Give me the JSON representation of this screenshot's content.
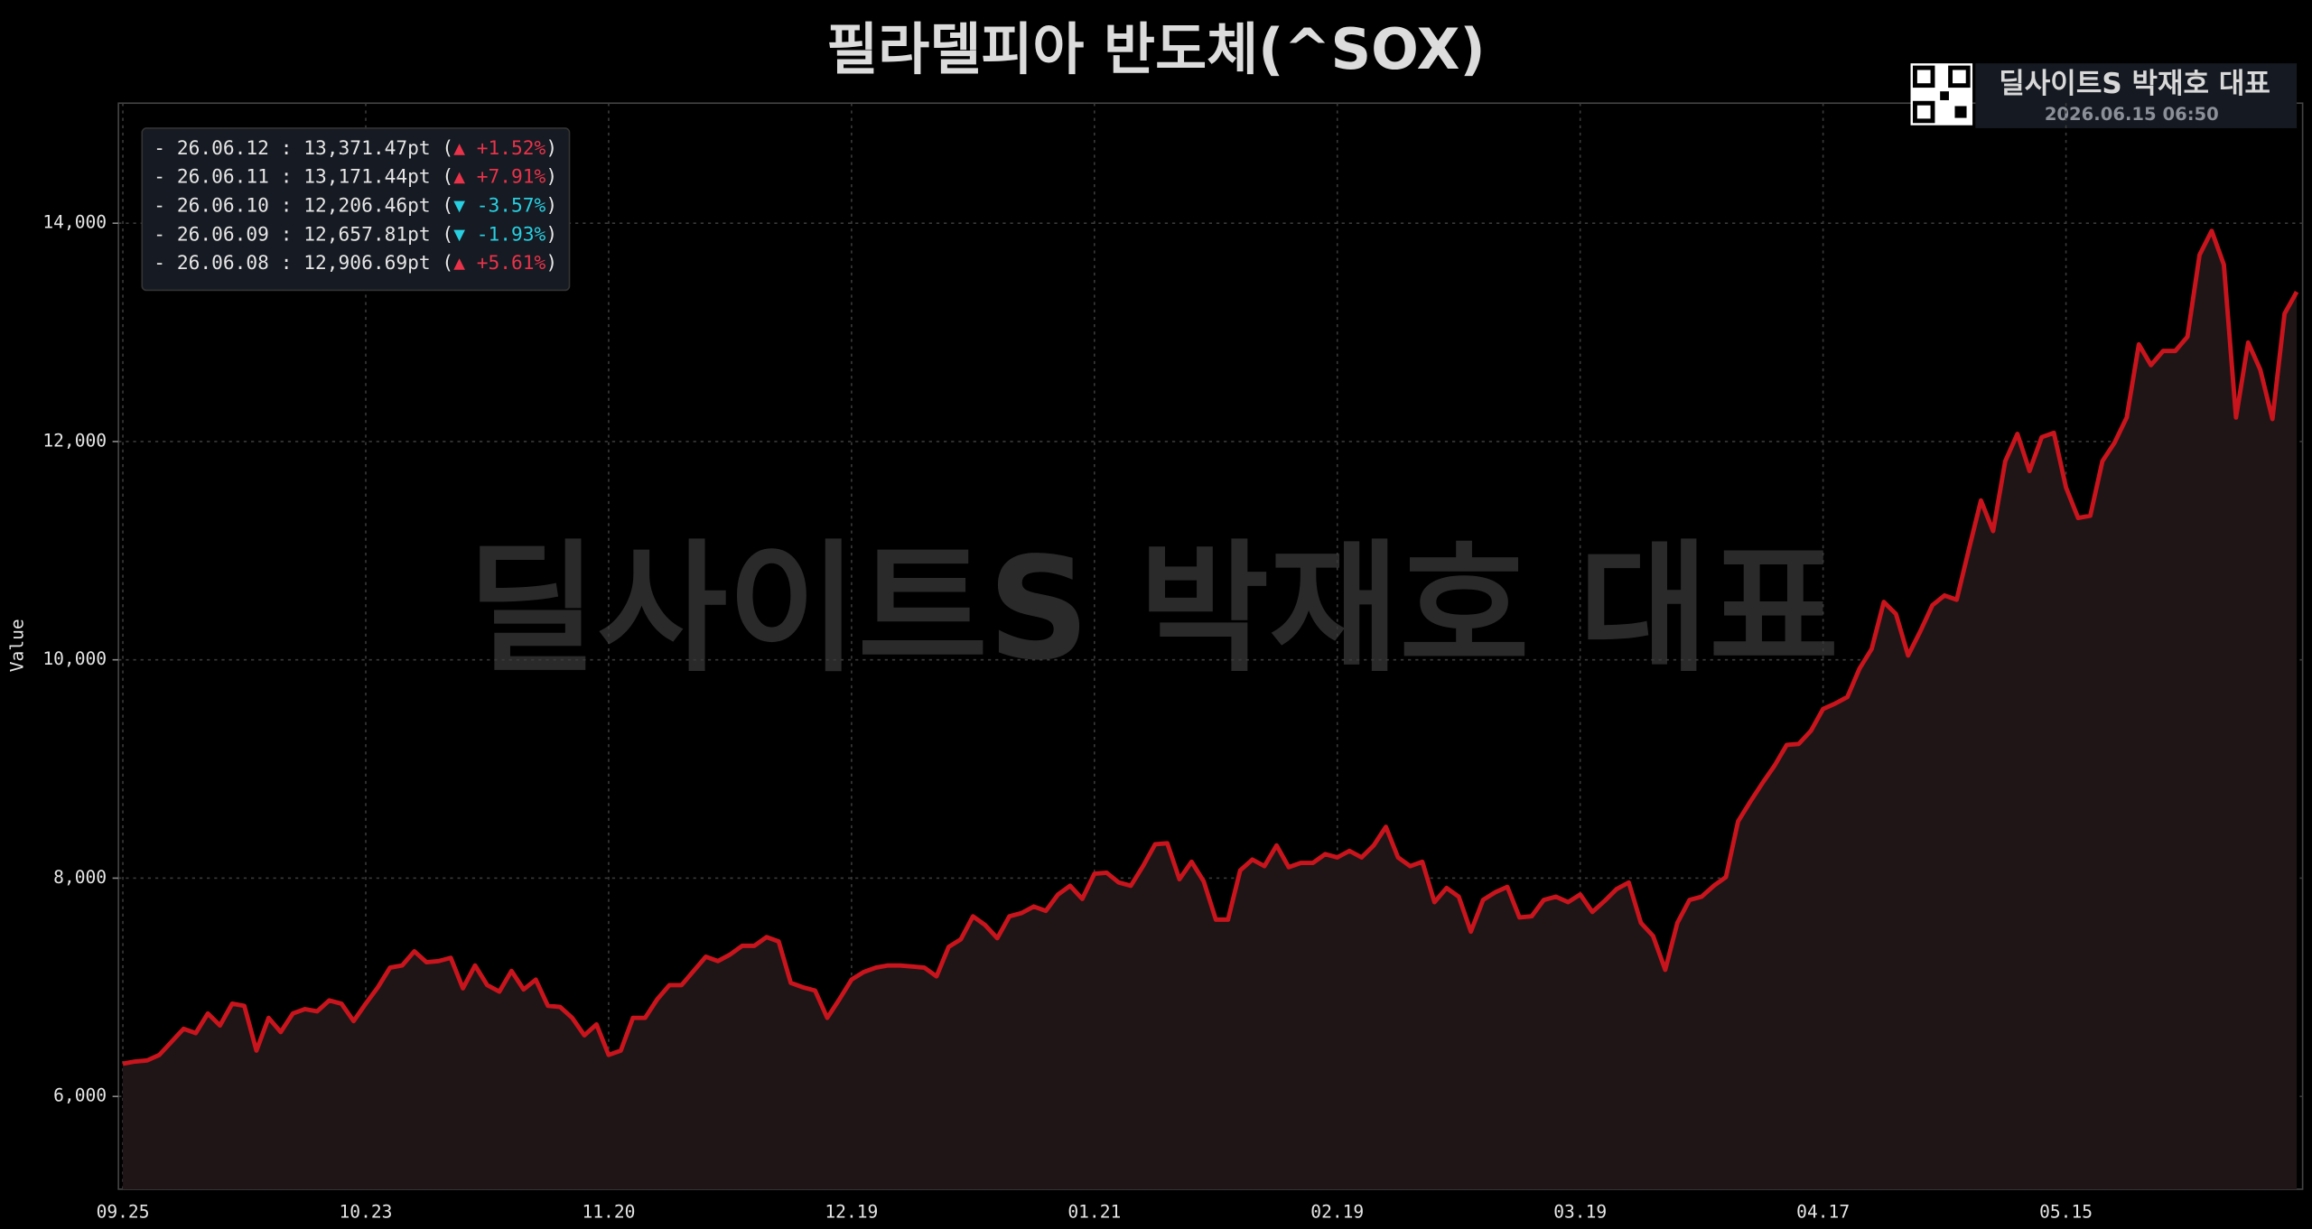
{
  "chart_data": {
    "type": "line",
    "title": "필라델피아 반도체(^SOX)",
    "brand": "딜사이트S 박재호 대표",
    "timestamp": "2026.06.15 06:50",
    "watermark": "딜사이트S 박재호 대표",
    "y_label": "Value",
    "color": "#c8141c",
    "fill_color": "#1f1516",
    "grid": true,
    "ylim": [
      5150,
      15100
    ],
    "yticks": [
      {
        "value": 6000,
        "label": "6,000"
      },
      {
        "value": 8000,
        "label": "8,000"
      },
      {
        "value": 10000,
        "label": "10,000"
      },
      {
        "value": 12000,
        "label": "12,000"
      },
      {
        "value": 14000,
        "label": "14,000"
      }
    ],
    "categories": [
      "09.25",
      null,
      null,
      null,
      null,
      null,
      null,
      null,
      null,
      null,
      null,
      null,
      null,
      null,
      null,
      null,
      null,
      null,
      null,
      null,
      "10.23",
      null,
      null,
      null,
      null,
      null,
      null,
      null,
      null,
      null,
      null,
      null,
      null,
      null,
      null,
      null,
      null,
      null,
      null,
      null,
      "11.20",
      null,
      null,
      null,
      null,
      null,
      null,
      null,
      null,
      null,
      null,
      null,
      null,
      null,
      null,
      null,
      null,
      null,
      null,
      null,
      "12.19",
      null,
      null,
      null,
      null,
      null,
      null,
      null,
      null,
      null,
      null,
      null,
      null,
      null,
      null,
      null,
      null,
      null,
      null,
      null,
      "01.21",
      null,
      null,
      null,
      null,
      null,
      null,
      null,
      null,
      null,
      null,
      null,
      null,
      null,
      null,
      null,
      null,
      null,
      null,
      null,
      "02.19",
      null,
      null,
      null,
      null,
      null,
      null,
      null,
      null,
      null,
      null,
      null,
      null,
      null,
      null,
      null,
      null,
      null,
      null,
      null,
      "03.19",
      null,
      null,
      null,
      null,
      null,
      null,
      null,
      null,
      null,
      null,
      null,
      null,
      null,
      null,
      null,
      null,
      null,
      null,
      null,
      "04.17",
      null,
      null,
      null,
      null,
      null,
      null,
      null,
      null,
      null,
      null,
      null,
      null,
      null,
      null,
      null,
      null,
      null,
      null,
      null,
      "05.15",
      null,
      null,
      null,
      null,
      null,
      null,
      null,
      null,
      null,
      null,
      null,
      null,
      null,
      null,
      null,
      null,
      null,
      null,
      null
    ],
    "values": [
      6300,
      6320,
      6330,
      6380,
      6500,
      6620,
      6580,
      6760,
      6650,
      6850,
      6830,
      6420,
      6720,
      6590,
      6760,
      6800,
      6780,
      6880,
      6850,
      6690,
      6850,
      7000,
      7180,
      7200,
      7330,
      7230,
      7240,
      7270,
      6990,
      7200,
      7020,
      6960,
      7150,
      6980,
      7070,
      6830,
      6820,
      6720,
      6560,
      6660,
      6380,
      6420,
      6720,
      6720,
      6890,
      7020,
      7020,
      7150,
      7280,
      7240,
      7300,
      7380,
      7380,
      7460,
      7420,
      7040,
      7000,
      6970,
      6720,
      6890,
      7070,
      7140,
      7180,
      7200,
      7200,
      7190,
      7180,
      7100,
      7370,
      7440,
      7650,
      7570,
      7450,
      7650,
      7680,
      7740,
      7700,
      7850,
      7930,
      7810,
      8040,
      8050,
      7960,
      7930,
      8110,
      8310,
      8320,
      7990,
      8150,
      7970,
      7620,
      7620,
      8070,
      8170,
      8110,
      8300,
      8100,
      8140,
      8140,
      8220,
      8190,
      8250,
      8190,
      8300,
      8470,
      8190,
      8110,
      8150,
      7780,
      7910,
      7830,
      7510,
      7800,
      7870,
      7920,
      7640,
      7650,
      7800,
      7830,
      7780,
      7850,
      7690,
      7790,
      7900,
      7960,
      7590,
      7470,
      7160,
      7590,
      7800,
      7830,
      7930,
      8010,
      8520,
      8700,
      8870,
      9030,
      9220,
      9230,
      9350,
      9550,
      9600,
      9660,
      9920,
      10100,
      10530,
      10420,
      10040,
      10260,
      10500,
      10590,
      10550,
      11010,
      11460,
      11180,
      11820,
      12070,
      11730,
      12040,
      12080,
      11580,
      11300,
      11320,
      11820,
      11990,
      12220,
      12890,
      12700,
      12830,
      12830,
      12960,
      13710,
      13930,
      13620,
      12220,
      12906.69,
      12657.81,
      12206.46,
      13171.44,
      13371.47
    ],
    "recent": [
      {
        "prefix": "- 26.06.12 : 13,371.47pt (",
        "change": "▲ +1.52%",
        "suffix": ")",
        "color": "#e8334a"
      },
      {
        "prefix": "- 26.06.11 : 13,171.44pt (",
        "change": "▲ +7.91%",
        "suffix": ")",
        "color": "#e8334a"
      },
      {
        "prefix": "- 26.06.10 : 12,206.46pt (",
        "change": "▼ -3.57%",
        "suffix": ")",
        "color": "#28cfe0"
      },
      {
        "prefix": "- 26.06.09 : 12,657.81pt (",
        "change": "▼ -1.93%",
        "suffix": ")",
        "color": "#28cfe0"
      },
      {
        "prefix": "- 26.06.08 : 12,906.69pt (",
        "change": "▲ +5.61%",
        "suffix": ")",
        "color": "#e8334a"
      }
    ]
  }
}
